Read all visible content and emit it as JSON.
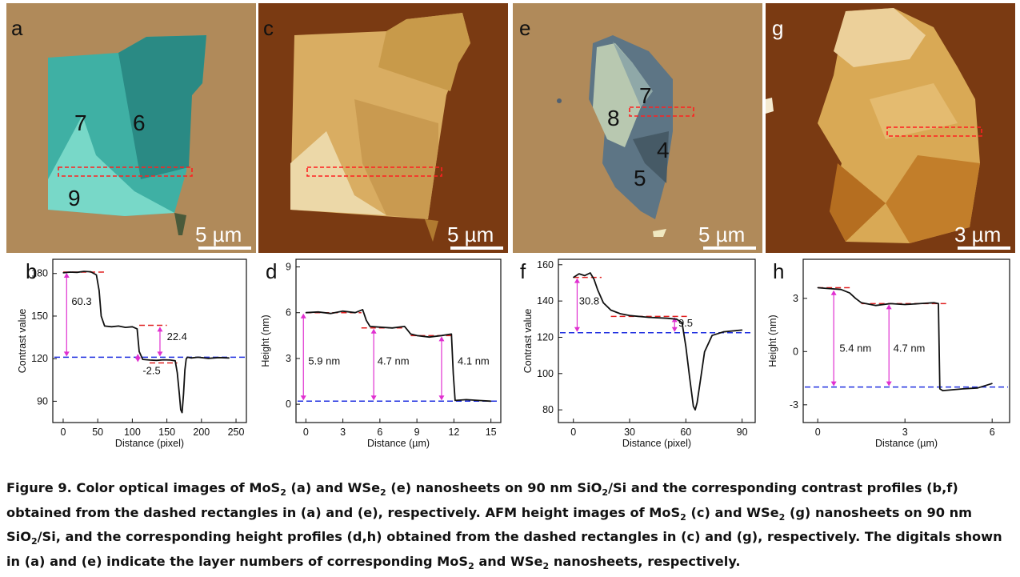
{
  "image_panels": [
    {
      "id": "a",
      "letter": "a",
      "scale": "5 µm",
      "layers": [
        "7",
        "6",
        "9"
      ]
    },
    {
      "id": "c",
      "letter": "c",
      "scale": "5 µm"
    },
    {
      "id": "e",
      "letter": "e",
      "scale": "5 µm",
      "layers": [
        "8",
        "7",
        "4",
        "5"
      ]
    },
    {
      "id": "g",
      "letter": "g",
      "scale": "3 µm"
    }
  ],
  "colors": {
    "optical_bg": "#b08a5a",
    "mos2_optical": "#3fb0a4",
    "afm_bg": "#7a3a12",
    "afm_flake": "#d9ad62",
    "wse2_optical": "#5d7585",
    "dashed_rect": "#ff2020",
    "ref_red": "#e02020",
    "ref_blue": "#2030e0",
    "arrow_magenta": "#e030d0"
  },
  "chart_data": [
    {
      "id": "b",
      "letter": "b",
      "type": "line",
      "xlabel": "Distance (pixel)",
      "ylabel": "Contrast value",
      "xlim": [
        -15,
        265
      ],
      "ylim": [
        75,
        190
      ],
      "xticks": [
        "0",
        "50",
        "100",
        "150",
        "200",
        "250"
      ],
      "yticks": [
        "90",
        "120",
        "150",
        "180"
      ],
      "xtick_values": [
        0,
        50,
        100,
        150,
        200,
        250
      ],
      "ytick_values": [
        90,
        120,
        150,
        180
      ],
      "series": [
        {
          "x": [
            0,
            10,
            20,
            30,
            40,
            48,
            52,
            55,
            60,
            70,
            80,
            90,
            100,
            107,
            110,
            115,
            125,
            135,
            145,
            155,
            162,
            165,
            168,
            170,
            172,
            174,
            176,
            178,
            180,
            185,
            195,
            210,
            225,
            240
          ],
          "values": [
            180.5,
            181,
            180.8,
            181.5,
            181.2,
            179,
            168,
            150,
            143,
            142.5,
            143,
            142,
            142.5,
            141,
            125,
            119.5,
            119,
            118.8,
            119.2,
            119,
            118.5,
            110,
            95,
            84,
            82,
            95,
            112,
            120,
            121,
            120.5,
            121,
            120.2,
            120.8,
            120.5
          ]
        }
      ],
      "annotations": [
        "60.3",
        "22.4",
        "-2.5"
      ]
    },
    {
      "id": "d",
      "letter": "d",
      "type": "line",
      "xlabel": "Distance (µm)",
      "ylabel": "Height (nm)",
      "xlim": [
        -0.8,
        15.8
      ],
      "ylim": [
        -1.2,
        9.5
      ],
      "xticks": [
        "0",
        "3",
        "6",
        "9",
        "12",
        "15"
      ],
      "yticks": [
        "0",
        "3",
        "6",
        "9"
      ],
      "xtick_values": [
        0,
        3,
        6,
        9,
        12,
        15
      ],
      "ytick_values": [
        0,
        3,
        6,
        9
      ],
      "series": [
        {
          "x": [
            0,
            1,
            2,
            3,
            4,
            4.6,
            4.9,
            5.2,
            6,
            7,
            8,
            8.5,
            9,
            10,
            11,
            11.8,
            11.95,
            12.1,
            13,
            14,
            15
          ],
          "values": [
            6.0,
            6.05,
            5.95,
            6.1,
            6.0,
            6.2,
            5.5,
            5.1,
            5.05,
            5.0,
            5.1,
            4.6,
            4.5,
            4.4,
            4.5,
            4.6,
            2.0,
            0.25,
            0.3,
            0.25,
            0.2
          ]
        }
      ],
      "annotations": [
        "5.9 nm",
        "4.7 nm",
        "4.1 nm"
      ]
    },
    {
      "id": "f",
      "letter": "f",
      "type": "line",
      "xlabel": "Distance (pixel)",
      "ylabel": "Contrast value",
      "xlim": [
        -8,
        97
      ],
      "ylim": [
        73,
        163
      ],
      "xticks": [
        "0",
        "30",
        "60",
        "90"
      ],
      "yticks": [
        "80",
        "100",
        "120",
        "140",
        "160"
      ],
      "xtick_values": [
        0,
        30,
        60,
        90
      ],
      "ytick_values": [
        80,
        100,
        120,
        140,
        160
      ],
      "series": [
        {
          "x": [
            0,
            3,
            6,
            9,
            11,
            13,
            16,
            20,
            25,
            30,
            40,
            50,
            55,
            58,
            60,
            62,
            64,
            65,
            66,
            68,
            70,
            74,
            80,
            90
          ],
          "values": [
            153,
            155,
            154,
            155.5,
            152,
            146,
            139,
            135,
            133,
            132,
            131,
            130.5,
            130,
            128,
            115,
            98,
            82,
            80,
            84,
            98,
            112,
            121,
            123,
            124
          ]
        }
      ],
      "annotations": [
        "30.8",
        "9.5"
      ]
    },
    {
      "id": "h",
      "letter": "h",
      "type": "line",
      "xlabel": "Distance (µm)",
      "ylabel": "Height (nm)",
      "xlim": [
        -0.5,
        6.6
      ],
      "ylim": [
        -4,
        5.2
      ],
      "xticks": [
        "0",
        "3",
        "6"
      ],
      "yticks": [
        "-3",
        "0",
        "3"
      ],
      "xtick_values": [
        0,
        3,
        6
      ],
      "ytick_values": [
        -3,
        0,
        3
      ],
      "series": [
        {
          "x": [
            0,
            0.4,
            0.8,
            1.1,
            1.3,
            1.5,
            2.0,
            2.5,
            3.0,
            3.5,
            4.0,
            4.15,
            4.2,
            4.3,
            5.0,
            5.5,
            6.0
          ],
          "values": [
            3.6,
            3.55,
            3.5,
            3.3,
            3.0,
            2.75,
            2.6,
            2.7,
            2.65,
            2.7,
            2.75,
            2.7,
            -2.1,
            -2.2,
            -2.1,
            -2.05,
            -1.8
          ]
        }
      ],
      "annotations": [
        "5.4 nm",
        "4.7 nm"
      ]
    }
  ],
  "caption": {
    "label": "Figure 9.",
    "t1": "  Color optical images of MoS",
    "s1": "2",
    "t2": " (a) and WSe",
    "s2": "2",
    "t3": " (e) nanosheets on 90 nm SiO",
    "s3": "2",
    "t4": "/Si and the corresponding contrast profiles (b,f) obtained from the dashed rectangles in (a) and (e), respectively. AFM height images of MoS",
    "s4": "2",
    "t5": " (c) and WSe",
    "s5": "2",
    "t6": " (g) nanosheets on 90 nm SiO",
    "s6": "2",
    "t7": "/Si, and the corresponding height profiles (d,h) obtained from the dashed rectangles in (c) and (g), respectively. The digitals shown in (a) and (e) indicate the layer numbers of corresponding MoS",
    "s7": "2",
    "t8": " and WSe",
    "s8": "2",
    "t9": " nanosheets, respectively."
  }
}
